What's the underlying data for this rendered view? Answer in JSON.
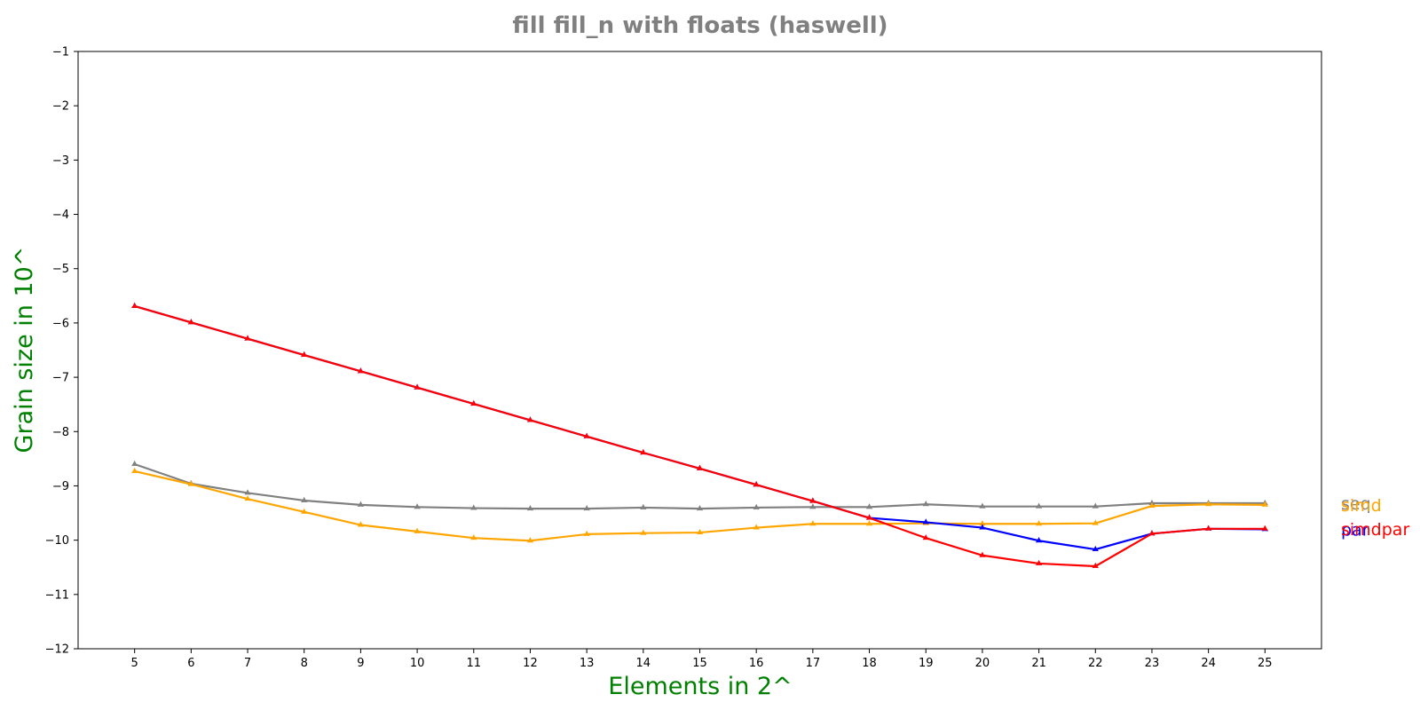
{
  "chart_data": {
    "type": "line",
    "title": "fill fill_n with floats  (haswell)",
    "xlabel": "Elements in 2^",
    "ylabel": "Grain size in 10^",
    "xlim": [
      4,
      26
    ],
    "ylim": [
      -12,
      -1
    ],
    "xticks": [
      5,
      6,
      7,
      8,
      9,
      10,
      11,
      12,
      13,
      14,
      15,
      16,
      17,
      18,
      19,
      20,
      21,
      22,
      23,
      24,
      25
    ],
    "yticks": [
      -1,
      -2,
      -3,
      -4,
      -5,
      -6,
      -7,
      -8,
      -9,
      -10,
      -11,
      -12
    ],
    "x": [
      5,
      6,
      7,
      8,
      9,
      10,
      11,
      12,
      13,
      14,
      15,
      16,
      17,
      18,
      19,
      20,
      21,
      22,
      23,
      24,
      25
    ],
    "grid": false,
    "legend_placement": "right, at line ends",
    "colors": {
      "title": "#808080",
      "axis_titles": "#008000"
    },
    "series": [
      {
        "name": "seq",
        "color": "#808080",
        "values": [
          -8.6,
          -8.96,
          -9.13,
          -9.27,
          -9.35,
          -9.39,
          -9.41,
          -9.42,
          -9.42,
          -9.4,
          -9.42,
          -9.4,
          -9.39,
          -9.39,
          -9.34,
          -9.38,
          -9.38,
          -9.38,
          -9.32,
          -9.32,
          -9.32
        ]
      },
      {
        "name": "simd",
        "color": "#ffa500",
        "values": [
          -8.73,
          -8.97,
          -9.24,
          -9.48,
          -9.72,
          -9.84,
          -9.96,
          -10.01,
          -9.89,
          -9.87,
          -9.86,
          -9.77,
          -9.7,
          -9.7,
          -9.69,
          -9.7,
          -9.7,
          -9.69,
          -9.37,
          -9.34,
          -9.35
        ]
      },
      {
        "name": "par",
        "color": "#0000ff",
        "values": [
          -5.69,
          -5.99,
          -6.29,
          -6.59,
          -6.89,
          -7.19,
          -7.49,
          -7.79,
          -8.09,
          -8.39,
          -8.68,
          -8.98,
          -9.28,
          -9.59,
          -9.67,
          -9.77,
          -10.01,
          -10.17,
          -9.88,
          -9.79,
          -9.8
        ]
      },
      {
        "name": "simdpar",
        "color": "#ff0000",
        "values": [
          -5.69,
          -5.99,
          -6.29,
          -6.59,
          -6.89,
          -7.19,
          -7.49,
          -7.79,
          -8.09,
          -8.39,
          -8.68,
          -8.98,
          -9.28,
          -9.59,
          -9.96,
          -10.28,
          -10.43,
          -10.48,
          -9.88,
          -9.79,
          -9.79
        ]
      }
    ],
    "legend_labels": [
      {
        "name": "seq",
        "color": "#808080"
      },
      {
        "name": "simd",
        "color": "#ffa500"
      },
      {
        "name": "par",
        "color": "#0000ff"
      },
      {
        "name": "simdpar",
        "color": "#ff0000"
      }
    ]
  }
}
